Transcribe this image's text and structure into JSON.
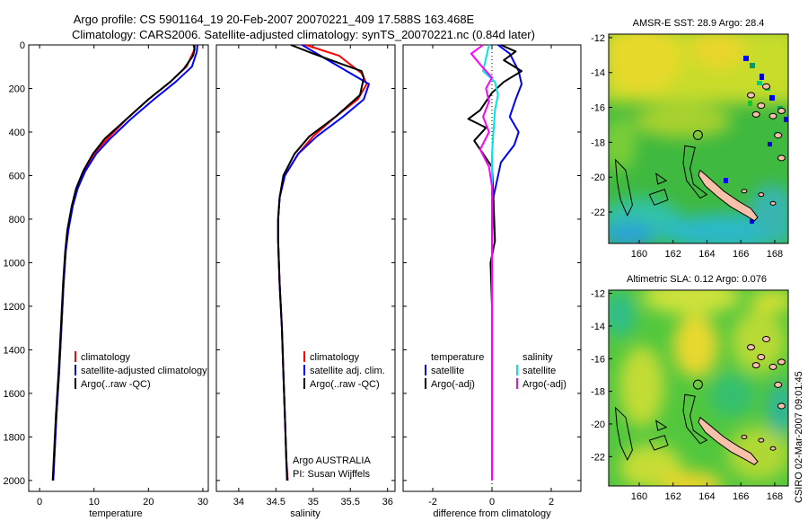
{
  "header": {
    "title_line1": "Argo profile: CS 5901164_19 20-Feb-2007 20070221_409 17.588S 163.468E",
    "title_line2": "Climatology: CARS2006. Satellite-adjusted climatology: synTS_20070221.nc (0.84d later)"
  },
  "side_stamp": "CSIRO 02-Mar-2007 09:01:45",
  "colors": {
    "climatology": "#ff0000",
    "satellite": "#0000ff",
    "argo": "#000000",
    "sal_satellite": "#00e5e5",
    "sal_argo": "#ff00ff"
  },
  "chart_data": [
    {
      "type": "line",
      "id": "temperature",
      "xlabel": "temperature",
      "ylabel": "",
      "xlim": [
        -2,
        31
      ],
      "ylim": [
        2050,
        0
      ],
      "xticks": [
        0,
        10,
        20,
        30
      ],
      "yticks": [
        0,
        200,
        400,
        600,
        800,
        1000,
        1200,
        1400,
        1600,
        1800,
        2000
      ],
      "legend": [
        "climatology",
        "satellite-adjusted climatology",
        "Argo(..raw -QC)"
      ],
      "series": [
        {
          "name": "climatology",
          "color": "red",
          "points": [
            [
              28.6,
              0
            ],
            [
              28.3,
              30
            ],
            [
              27,
              100
            ],
            [
              24,
              170
            ],
            [
              20,
              250
            ],
            [
              16,
              340
            ],
            [
              12.5,
              430
            ],
            [
              10,
              500
            ],
            [
              8.2,
              580
            ],
            [
              6.8,
              660
            ],
            [
              6,
              740
            ],
            [
              5.2,
              850
            ],
            [
              4.8,
              950
            ],
            [
              4.4,
              1100
            ],
            [
              4,
              1300
            ],
            [
              3.6,
              1500
            ],
            [
              3.1,
              1700
            ],
            [
              2.7,
              1900
            ],
            [
              2.5,
              2000
            ]
          ]
        },
        {
          "name": "satellite-adjusted climatology",
          "color": "blue",
          "points": [
            [
              29,
              0
            ],
            [
              28.9,
              30
            ],
            [
              28,
              100
            ],
            [
              25,
              170
            ],
            [
              21,
              250
            ],
            [
              16.8,
              340
            ],
            [
              13,
              430
            ],
            [
              10.4,
              500
            ],
            [
              8.4,
              580
            ],
            [
              7,
              660
            ],
            [
              6.1,
              740
            ],
            [
              5.3,
              850
            ],
            [
              4.8,
              950
            ],
            [
              4.4,
              1100
            ],
            [
              4,
              1300
            ],
            [
              3.6,
              1500
            ],
            [
              3.1,
              1700
            ],
            [
              2.7,
              1900
            ],
            [
              2.5,
              2000
            ]
          ]
        },
        {
          "name": "Argo(..raw -QC)",
          "color": "black",
          "points": [
            [
              28.3,
              0
            ],
            [
              28.5,
              20
            ],
            [
              28.2,
              50
            ],
            [
              26.5,
              110
            ],
            [
              24,
              170
            ],
            [
              20,
              250
            ],
            [
              16,
              340
            ],
            [
              12,
              430
            ],
            [
              9.8,
              500
            ],
            [
              8,
              580
            ],
            [
              6.7,
              660
            ],
            [
              5.9,
              740
            ],
            [
              5.1,
              850
            ],
            [
              4.7,
              950
            ],
            [
              4.3,
              1100
            ],
            [
              3.9,
              1300
            ],
            [
              3.5,
              1500
            ],
            [
              3,
              1700
            ],
            [
              2.6,
              1900
            ],
            [
              2.4,
              2000
            ]
          ]
        }
      ]
    },
    {
      "type": "line",
      "id": "salinity",
      "xlabel": "salinity",
      "xlim": [
        33.7,
        36.1
      ],
      "ylim": [
        2050,
        0
      ],
      "xticks": [
        34,
        34.5,
        35,
        35.5,
        36
      ],
      "legend": [
        "climatology",
        "satellite adj. clim.",
        "Argo(..raw -QC)"
      ],
      "annotation": [
        "Argo AUSTRALIA",
        "PI: Susan Wijffels"
      ],
      "series": [
        {
          "name": "climatology",
          "color": "red",
          "points": [
            [
              34.9,
              0
            ],
            [
              35.35,
              50
            ],
            [
              35.65,
              130
            ],
            [
              35.72,
              180
            ],
            [
              35.6,
              250
            ],
            [
              35.3,
              330
            ],
            [
              35,
              420
            ],
            [
              34.8,
              500
            ],
            [
              34.62,
              600
            ],
            [
              34.55,
              700
            ],
            [
              34.53,
              800
            ],
            [
              34.53,
              900
            ],
            [
              34.55,
              1100
            ],
            [
              34.58,
              1300
            ],
            [
              34.6,
              1500
            ],
            [
              34.62,
              1700
            ],
            [
              34.64,
              1900
            ],
            [
              34.66,
              2000
            ]
          ]
        },
        {
          "name": "satellite adj. clim.",
          "color": "blue",
          "points": [
            [
              34.85,
              0
            ],
            [
              35.1,
              50
            ],
            [
              35.5,
              130
            ],
            [
              35.75,
              180
            ],
            [
              35.68,
              250
            ],
            [
              35.4,
              330
            ],
            [
              35.05,
              420
            ],
            [
              34.8,
              500
            ],
            [
              34.62,
              600
            ],
            [
              34.55,
              700
            ],
            [
              34.53,
              800
            ],
            [
              34.53,
              900
            ],
            [
              34.55,
              1100
            ],
            [
              34.58,
              1300
            ],
            [
              34.6,
              1500
            ],
            [
              34.62,
              1700
            ],
            [
              34.64,
              1900
            ],
            [
              34.65,
              2000
            ]
          ]
        },
        {
          "name": "Argo(..raw -QC)",
          "color": "black",
          "points": [
            [
              34.7,
              0
            ],
            [
              35,
              40
            ],
            [
              35.4,
              90
            ],
            [
              35.65,
              120
            ],
            [
              35.68,
              150
            ],
            [
              35.63,
              230
            ],
            [
              35.3,
              330
            ],
            [
              34.95,
              420
            ],
            [
              34.75,
              500
            ],
            [
              34.6,
              600
            ],
            [
              34.55,
              700
            ],
            [
              34.53,
              800
            ],
            [
              34.53,
              900
            ],
            [
              34.55,
              1100
            ],
            [
              34.58,
              1300
            ],
            [
              34.6,
              1500
            ],
            [
              34.62,
              1700
            ],
            [
              34.64,
              1900
            ],
            [
              34.65,
              2000
            ]
          ]
        }
      ]
    },
    {
      "type": "line",
      "id": "difference",
      "xlabel": "difference from climatology",
      "xlim": [
        -3,
        3
      ],
      "ylim": [
        2050,
        0
      ],
      "xticks": [
        -2,
        0,
        2
      ],
      "legend_headers": [
        "temperature",
        "salinity"
      ],
      "legend": [
        "satellite",
        "Argo(-adj)",
        "satellite",
        "Argo(-adj)"
      ],
      "series": [
        {
          "name": "temperature satellite",
          "color": "blue",
          "points": [
            [
              0.2,
              0
            ],
            [
              0.6,
              40
            ],
            [
              0.9,
              120
            ],
            [
              1,
              180
            ],
            [
              0.8,
              250
            ],
            [
              0.6,
              330
            ],
            [
              0.9,
              400
            ],
            [
              0.75,
              460
            ],
            [
              0.3,
              540
            ],
            [
              0.05,
              700
            ],
            [
              0,
              900
            ],
            [
              0,
              2000
            ]
          ]
        },
        {
          "name": "temperature Argo(-adj)",
          "color": "black",
          "points": [
            [
              0.3,
              0
            ],
            [
              0.8,
              30
            ],
            [
              0.4,
              70
            ],
            [
              1,
              120
            ],
            [
              0.4,
              170
            ],
            [
              0,
              220
            ],
            [
              -0.4,
              300
            ],
            [
              -0.8,
              340
            ],
            [
              -0.2,
              380
            ],
            [
              -0.6,
              440
            ],
            [
              -0.3,
              500
            ],
            [
              0,
              560
            ],
            [
              0.05,
              700
            ],
            [
              0.1,
              900
            ],
            [
              -0.05,
              1000
            ],
            [
              0,
              1200
            ],
            [
              0,
              2000
            ]
          ]
        },
        {
          "name": "salinity satellite",
          "color": "cyan",
          "points": [
            [
              -0.1,
              0
            ],
            [
              -0.2,
              60
            ],
            [
              -0.3,
              120
            ],
            [
              0.1,
              170
            ],
            [
              0.2,
              230
            ],
            [
              0.1,
              300
            ],
            [
              0,
              500
            ],
            [
              0,
              2000
            ]
          ]
        },
        {
          "name": "salinity Argo(-adj)",
          "color": "magenta",
          "points": [
            [
              -0.3,
              0
            ],
            [
              -0.7,
              40
            ],
            [
              -0.4,
              90
            ],
            [
              0,
              150
            ],
            [
              -0.2,
              200
            ],
            [
              -0.1,
              260
            ],
            [
              -0.3,
              330
            ],
            [
              -0.1,
              400
            ],
            [
              -0.4,
              480
            ],
            [
              -0.1,
              560
            ],
            [
              0,
              650
            ],
            [
              0,
              900
            ],
            [
              0,
              2000
            ]
          ]
        }
      ]
    },
    {
      "type": "heatmap",
      "id": "sst_map",
      "title": "AMSR-E SST: 28.9 Argo: 28.4",
      "xlim": [
        158.2,
        168.8
      ],
      "ylim": [
        -23.8,
        -11.8
      ],
      "xticks": [
        160,
        162,
        164,
        166,
        168
      ],
      "yticks": [
        -12,
        -14,
        -16,
        -18,
        -20,
        -22
      ],
      "marker": [
        163.468,
        -17.588
      ]
    },
    {
      "type": "heatmap",
      "id": "sla_map",
      "title": "Altimetric SLA: 0.12 Argo: 0.076",
      "xlim": [
        158.2,
        168.8
      ],
      "ylim": [
        -23.8,
        -11.8
      ],
      "xticks": [
        160,
        162,
        164,
        166,
        168
      ],
      "yticks": [
        -12,
        -14,
        -16,
        -18,
        -20,
        -22
      ],
      "marker": [
        163.468,
        -17.588
      ]
    }
  ]
}
